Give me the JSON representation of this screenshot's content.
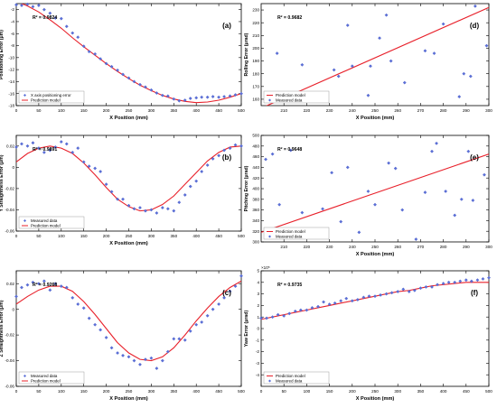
{
  "colors": {
    "marker": "#5a6fd8",
    "line": "#e8202a",
    "axis": "#000000"
  },
  "chart_data": [
    {
      "type": "scatter",
      "panel_label": "(a)",
      "xlabel": "X Position (mm)",
      "ylabel": "Positioning Error (μm)",
      "xlim": [
        0,
        500
      ],
      "ylim": [
        -18,
        -1
      ],
      "xticks": [
        0,
        50,
        100,
        150,
        200,
        250,
        300,
        350,
        400,
        450,
        500
      ],
      "yticks": [
        -18,
        -16,
        -14,
        -12,
        -10,
        -8,
        -6,
        -4,
        -2
      ],
      "r2": "R² = 0.9824",
      "legend": [
        "X axis positioning error",
        "Prediction model"
      ],
      "legend_loc": "lower-left",
      "measured": {
        "x": [
          0,
          12,
          25,
          37,
          50,
          62,
          75,
          87,
          100,
          112,
          125,
          137,
          150,
          162,
          175,
          187,
          200,
          212,
          225,
          237,
          250,
          262,
          275,
          287,
          300,
          312,
          325,
          337,
          350,
          362,
          375,
          387,
          400,
          412,
          425,
          437,
          450,
          462,
          475,
          487,
          500
        ],
        "y": [
          -1.2,
          -1.3,
          -1.1,
          -1.5,
          -1.3,
          -2.0,
          -2.6,
          -3.4,
          -3.5,
          -4.8,
          -5.9,
          -6.6,
          -8.1,
          -9.0,
          -9.4,
          -10.2,
          -11.0,
          -11.5,
          -12.1,
          -12.8,
          -13.4,
          -14.0,
          -14.5,
          -14.9,
          -15.4,
          -15.9,
          -16.3,
          -16.4,
          -16.9,
          -17.2,
          -17.1,
          -16.8,
          -16.7,
          -16.6,
          -16.6,
          -16.5,
          -16.6,
          -16.5,
          -16.4,
          -16.2,
          -16.0
        ]
      },
      "model": {
        "x": [
          0,
          25,
          50,
          75,
          100,
          125,
          150,
          175,
          200,
          225,
          250,
          275,
          300,
          325,
          350,
          375,
          400,
          425,
          450,
          475,
          500
        ],
        "y": [
          -0.6,
          -1.4,
          -2.4,
          -3.7,
          -5.1,
          -6.7,
          -8.2,
          -9.6,
          -11.0,
          -12.3,
          -13.5,
          -14.6,
          -15.5,
          -16.3,
          -16.9,
          -17.3,
          -17.5,
          -17.4,
          -17.1,
          -16.6,
          -16.0
        ]
      }
    },
    {
      "type": "scatter",
      "panel_label": "(b)",
      "xlabel": "X Position (mm)",
      "ylabel": "Y Straightness Error (μm)",
      "xlim": [
        0,
        500
      ],
      "ylim": [
        -0.06,
        0.03
      ],
      "xticks": [
        0,
        50,
        100,
        150,
        200,
        250,
        300,
        350,
        400,
        450,
        500
      ],
      "yticks": [
        -0.06,
        -0.04,
        -0.02,
        0,
        0.02
      ],
      "r2": "R² = 0.9891",
      "legend": [
        "Measured data",
        "Prediction model"
      ],
      "legend_loc": "lower-left",
      "measured": {
        "x": [
          0,
          12,
          25,
          37,
          50,
          62,
          75,
          87,
          100,
          112,
          125,
          137,
          150,
          162,
          175,
          187,
          200,
          212,
          225,
          237,
          250,
          262,
          275,
          287,
          300,
          312,
          325,
          337,
          350,
          362,
          375,
          387,
          400,
          412,
          425,
          437,
          450,
          462,
          475,
          487,
          500
        ],
        "y": [
          0.019,
          0.022,
          0.02,
          0.023,
          0.018,
          0.014,
          0.016,
          0.019,
          0.024,
          0.022,
          0.014,
          0.018,
          0.005,
          0.001,
          -0.001,
          -0.004,
          -0.016,
          -0.023,
          -0.03,
          -0.03,
          -0.036,
          -0.039,
          -0.038,
          -0.041,
          -0.04,
          -0.043,
          -0.038,
          -0.039,
          -0.041,
          -0.033,
          -0.026,
          -0.018,
          -0.013,
          -0.004,
          0.002,
          0.008,
          0.011,
          0.016,
          0.018,
          0.021,
          0.02
        ]
      },
      "model": {
        "x": [
          0,
          25,
          50,
          75,
          100,
          125,
          150,
          175,
          200,
          225,
          250,
          275,
          300,
          325,
          350,
          375,
          400,
          425,
          450,
          475,
          500
        ],
        "y": [
          0.005,
          0.013,
          0.018,
          0.02,
          0.018,
          0.013,
          0.004,
          -0.007,
          -0.019,
          -0.03,
          -0.037,
          -0.041,
          -0.04,
          -0.035,
          -0.027,
          -0.016,
          -0.005,
          0.006,
          0.014,
          0.019,
          0.02
        ]
      }
    },
    {
      "type": "scatter",
      "panel_label": "(c)",
      "xlabel": "X Position (mm)",
      "ylabel": "Z Straightness Error (μm)",
      "xlim": [
        0,
        500
      ],
      "ylim": [
        -0.06,
        0.03
      ],
      "xticks": [
        0,
        50,
        100,
        150,
        200,
        250,
        300,
        350,
        400,
        450,
        500
      ],
      "yticks": [
        -0.06,
        -0.04,
        -0.02,
        0,
        0.02
      ],
      "r2": "R² = 0.9268",
      "legend": [
        "Measured data",
        "Prediction model"
      ],
      "legend_loc": "lower-left",
      "measured": {
        "x": [
          0,
          12,
          25,
          37,
          50,
          62,
          75,
          87,
          100,
          112,
          125,
          137,
          150,
          162,
          175,
          187,
          200,
          212,
          225,
          237,
          250,
          262,
          275,
          287,
          300,
          312,
          325,
          337,
          350,
          362,
          375,
          387,
          400,
          412,
          425,
          437,
          450,
          462,
          475,
          487,
          500
        ],
        "y": [
          0.01,
          0.017,
          0.019,
          0.021,
          0.02,
          0.022,
          0.015,
          0.02,
          0.018,
          0.017,
          0.009,
          0.004,
          0.001,
          -0.007,
          -0.012,
          -0.016,
          -0.022,
          -0.03,
          -0.034,
          -0.036,
          -0.037,
          -0.04,
          -0.043,
          -0.039,
          -0.038,
          -0.046,
          -0.04,
          -0.033,
          -0.023,
          -0.023,
          -0.024,
          -0.017,
          -0.012,
          -0.01,
          -0.005,
          0.0,
          0.004,
          0.009,
          0.014,
          0.018,
          0.026
        ]
      },
      "model": {
        "x": [
          0,
          25,
          50,
          75,
          100,
          125,
          150,
          175,
          200,
          225,
          250,
          275,
          300,
          325,
          350,
          375,
          400,
          425,
          450,
          475,
          500
        ],
        "y": [
          0.004,
          0.01,
          0.015,
          0.018,
          0.018,
          0.014,
          0.006,
          -0.004,
          -0.015,
          -0.026,
          -0.034,
          -0.039,
          -0.04,
          -0.037,
          -0.03,
          -0.02,
          -0.009,
          0.001,
          0.01,
          0.017,
          0.022
        ]
      }
    },
    {
      "type": "scatter",
      "panel_label": "(d)",
      "xlabel": "X Position (mm)",
      "ylabel": "Rolling Error (μrad)",
      "xlim": [
        200,
        300
      ],
      "ylim": [
        155,
        235
      ],
      "xticks": [
        210,
        220,
        230,
        240,
        250,
        260,
        270,
        280,
        290,
        300
      ],
      "yticks": [
        160,
        170,
        180,
        190,
        200,
        210,
        220,
        230
      ],
      "r2": "R² = 0.9682",
      "legend": [
        "Prediction model",
        "Measured data"
      ],
      "legend_loc": "lower-left",
      "measured": {
        "x": [
          202,
          207,
          218,
          228,
          232,
          234,
          238,
          240,
          247,
          248,
          252,
          255,
          257,
          263,
          272,
          276,
          280,
          287,
          289,
          292,
          294,
          299
        ],
        "y": [
          162,
          196,
          187,
          165,
          183,
          178,
          218,
          186,
          163,
          186,
          208,
          226,
          190,
          173,
          198,
          196,
          219,
          162,
          180,
          178,
          233,
          202
        ]
      },
      "model": {
        "x": [
          200,
          300
        ],
        "y": [
          153,
          232
        ]
      }
    },
    {
      "type": "scatter",
      "panel_label": "(e)",
      "xlabel": "X Position (mm)",
      "ylabel": "Pitching Error (μrad)",
      "xlim": [
        200,
        300
      ],
      "ylim": [
        300,
        500
      ],
      "xticks": [
        210,
        220,
        230,
        240,
        250,
        260,
        270,
        280,
        290,
        300
      ],
      "yticks": [
        300,
        320,
        340,
        360,
        380,
        400,
        420,
        440,
        460,
        480,
        500
      ],
      "r2": "R² = 0.9648",
      "legend": [
        "Prediction model",
        "Measured data"
      ],
      "legend_loc": "lower-left",
      "measured": {
        "x": [
          202,
          205,
          208,
          213,
          218,
          223,
          227,
          231,
          235,
          238,
          243,
          247,
          250,
          256,
          259,
          262,
          268,
          272,
          275,
          277,
          281,
          285,
          288,
          291,
          293,
          298
        ],
        "y": [
          455,
          465,
          370,
          472,
          355,
          320,
          362,
          430,
          338,
          440,
          318,
          395,
          370,
          448,
          438,
          360,
          305,
          393,
          470,
          485,
          395,
          350,
          380,
          470,
          378,
          426
        ]
      },
      "model": {
        "x": [
          200,
          300
        ],
        "y": [
          318,
          465
        ]
      }
    },
    {
      "type": "scatter",
      "panel_label": "(f)",
      "xlabel": "X Position (mm)",
      "ylabel": "Yaw Error (μrad)",
      "y_exponent": "×10⁵",
      "xlim": [
        0,
        500
      ],
      "ylim": [
        -5,
        5
      ],
      "xticks": [
        0,
        50,
        100,
        150,
        200,
        250,
        300,
        350,
        400,
        450,
        500
      ],
      "yticks": [
        -4,
        -3,
        -2,
        -1,
        0,
        1,
        2,
        3,
        4,
        5
      ],
      "r2": "R² = 0.9735",
      "legend": [
        "Prediction model",
        "Measured data"
      ],
      "legend_loc": "lower-left",
      "measured": {
        "x": [
          0,
          12,
          25,
          37,
          50,
          62,
          75,
          87,
          100,
          112,
          125,
          137,
          150,
          162,
          175,
          187,
          200,
          212,
          225,
          237,
          250,
          262,
          275,
          287,
          300,
          312,
          325,
          337,
          350,
          362,
          375,
          387,
          400,
          412,
          425,
          437,
          450,
          462,
          475,
          487,
          500
        ],
        "y": [
          0.9,
          0.9,
          1.0,
          1.2,
          1.1,
          1.3,
          1.5,
          1.6,
          1.6,
          1.8,
          1.9,
          2.3,
          2.1,
          2.2,
          2.4,
          2.6,
          2.4,
          2.5,
          2.7,
          2.8,
          2.8,
          2.9,
          3.0,
          3.1,
          3.2,
          3.4,
          3.2,
          3.3,
          3.5,
          3.6,
          3.6,
          3.8,
          3.9,
          4.0,
          4.0,
          4.1,
          4.2,
          4.1,
          4.2,
          4.3,
          4.4
        ]
      },
      "model": {
        "x": [
          0,
          25,
          50,
          75,
          100,
          125,
          150,
          175,
          200,
          225,
          250,
          275,
          300,
          325,
          350,
          375,
          400,
          425,
          450,
          475,
          500
        ],
        "y": [
          0.8,
          1.0,
          1.2,
          1.4,
          1.6,
          1.8,
          2.0,
          2.2,
          2.4,
          2.6,
          2.8,
          3.0,
          3.2,
          3.3,
          3.5,
          3.7,
          3.8,
          3.9,
          4.0,
          4.0,
          4.0
        ]
      }
    }
  ]
}
